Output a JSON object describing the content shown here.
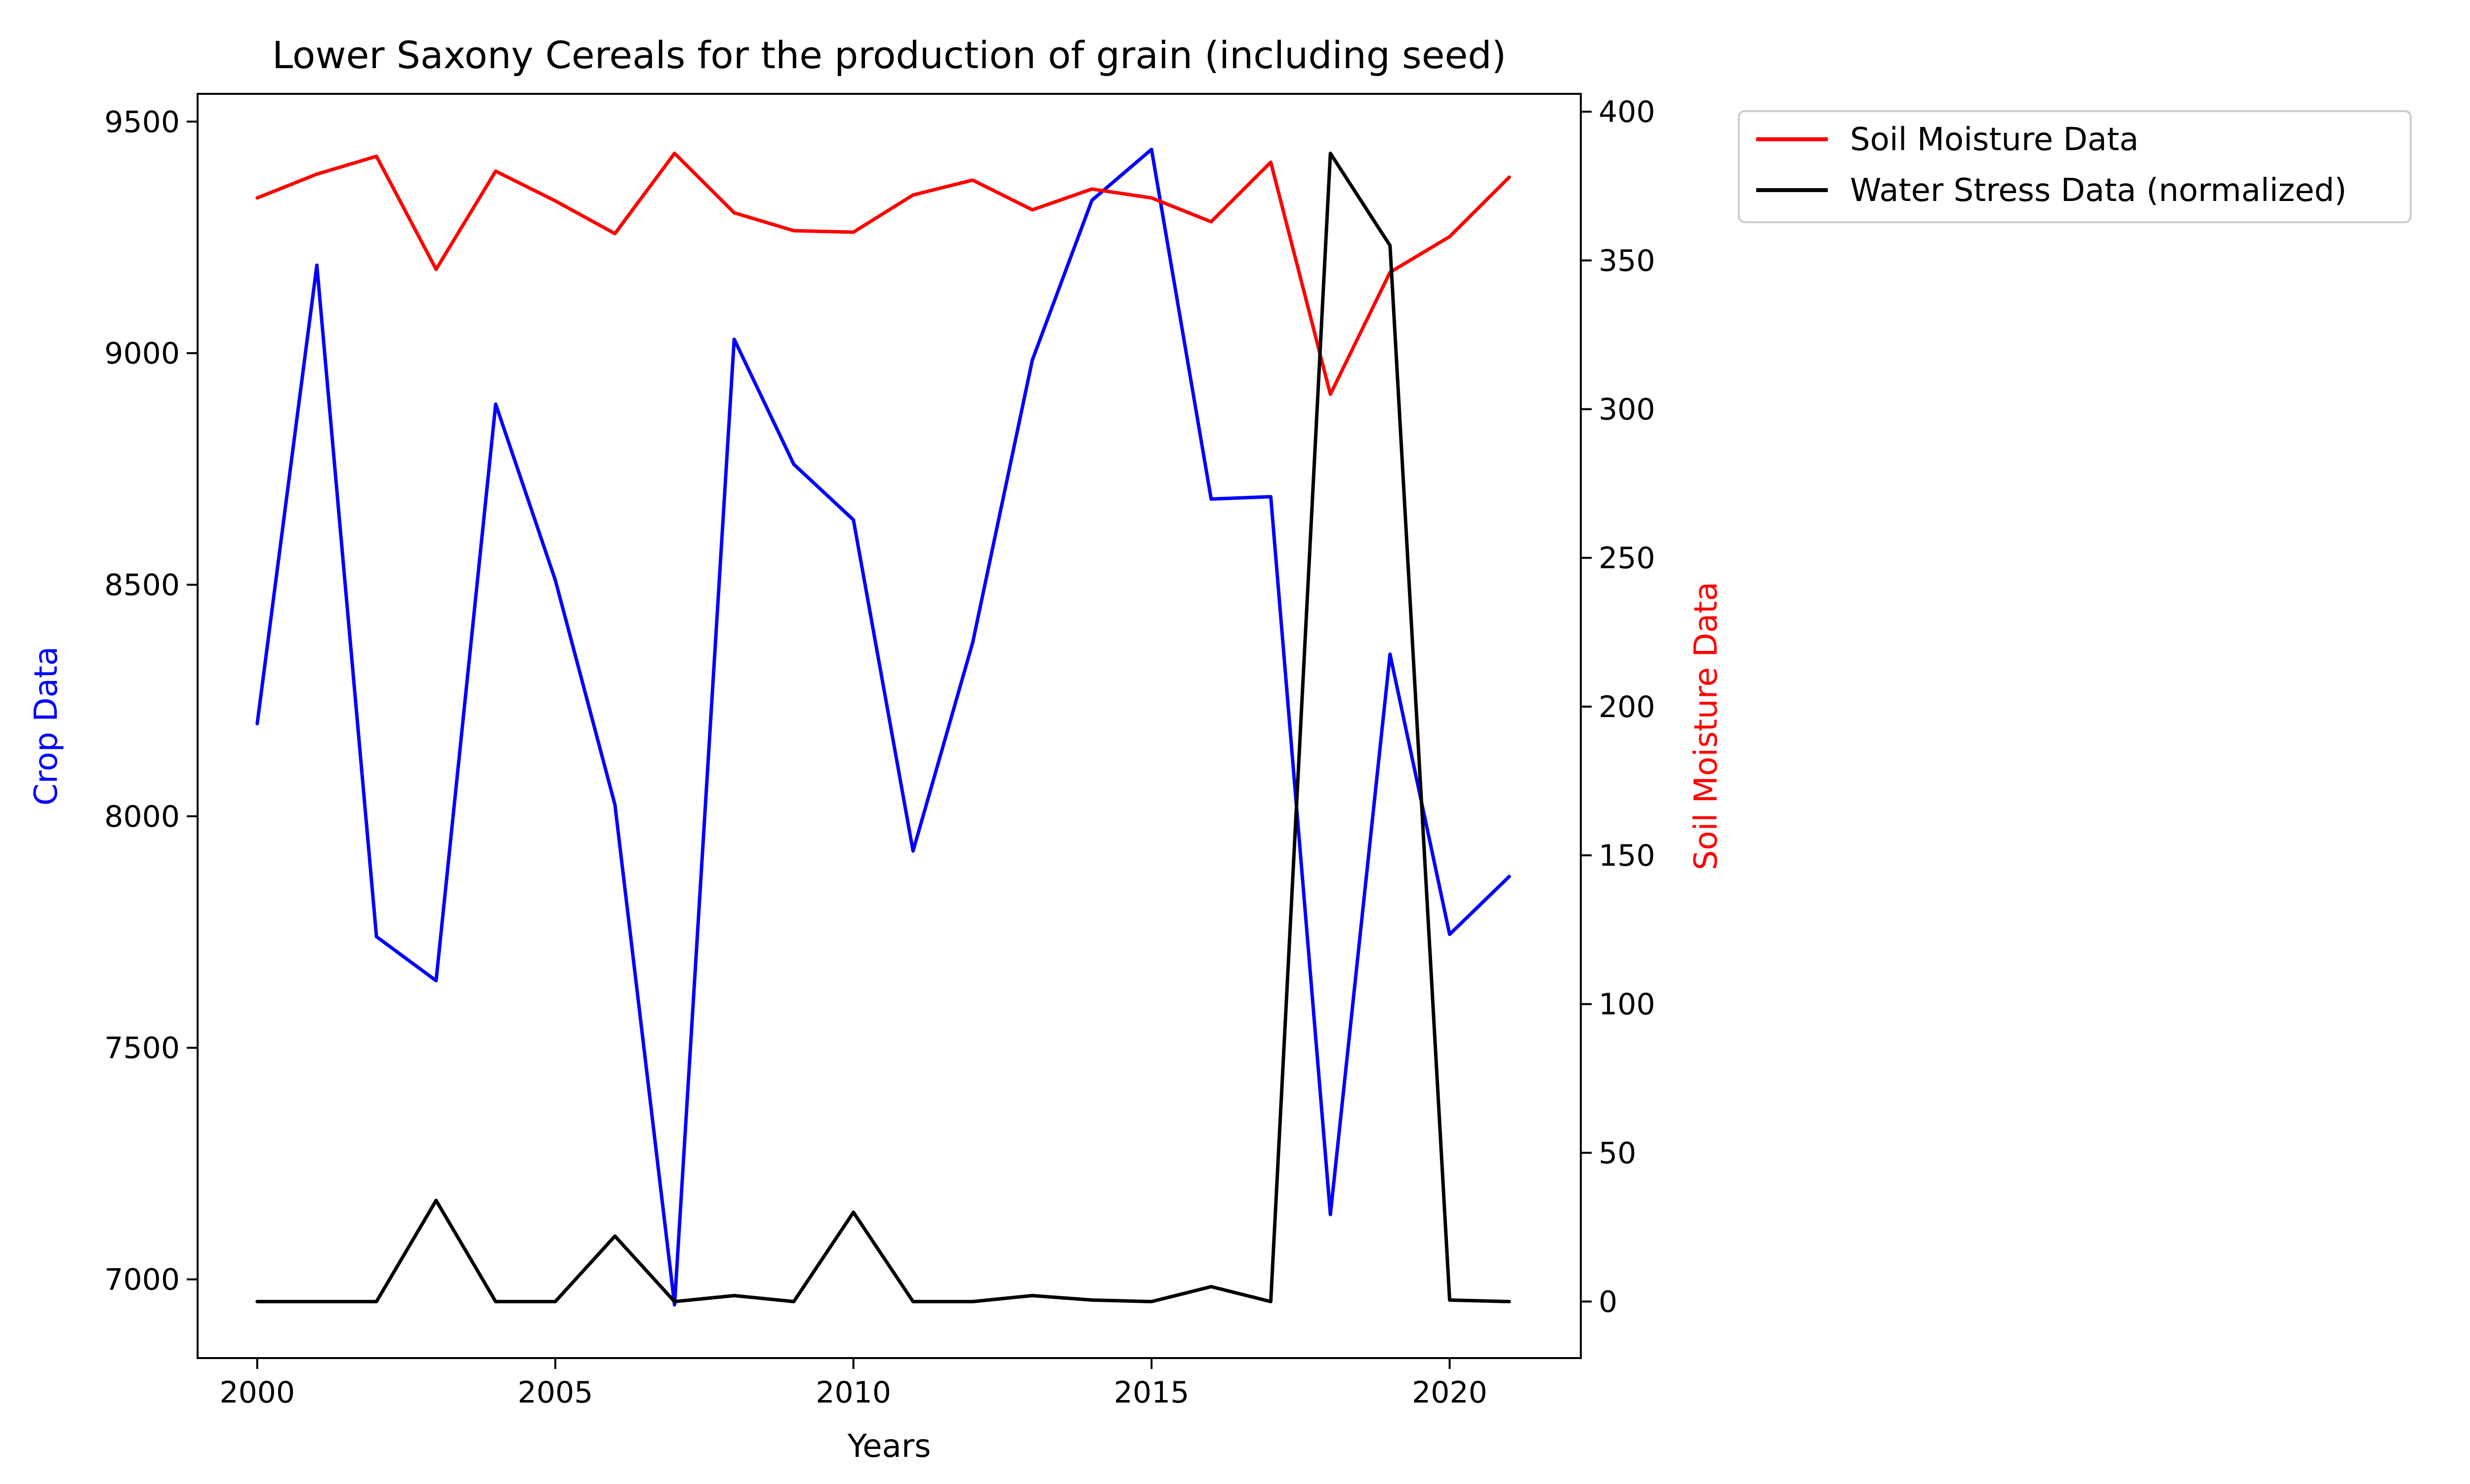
{
  "chart_data": {
    "type": "line",
    "title": "Lower Saxony Cereals for the production of grain (including seed)",
    "xlabel": "Years",
    "ylabel_left": "Crop Data",
    "ylabel_right": "Soil Moisture Data",
    "x": [
      2000,
      2001,
      2002,
      2003,
      2004,
      2005,
      2006,
      2007,
      2008,
      2009,
      2010,
      2011,
      2012,
      2013,
      2014,
      2015,
      2016,
      2017,
      2018,
      2019,
      2020,
      2021
    ],
    "xlim": [
      1999,
      2022.2
    ],
    "ylim_left": [
      6830,
      9560
    ],
    "ylim_right": [
      -19,
      406
    ],
    "xticks": [
      2000,
      2005,
      2010,
      2015,
      2020
    ],
    "yticks_left": [
      7000,
      7500,
      8000,
      8500,
      9000,
      9500
    ],
    "yticks_right": [
      0,
      50,
      100,
      150,
      200,
      250,
      300,
      350,
      400
    ],
    "grid": false,
    "legend_position": "outside-top-right",
    "colors": {
      "crop": "#0000ff",
      "soil": "#ff0000",
      "stress": "#000000",
      "left_label": "#0000ff",
      "right_label": "#ff0000"
    },
    "series": [
      {
        "key": "crop",
        "axis": "left",
        "values": [
          8200,
          9190,
          7740,
          7645,
          8890,
          8510,
          8025,
          6945,
          9030,
          8760,
          8640,
          7925,
          8375,
          8985,
          9330,
          9440,
          8685,
          8690,
          7140,
          8350,
          7745,
          7870
        ]
      },
      {
        "key": "soil",
        "axis": "right",
        "name": "Soil Moisture Data",
        "values": [
          371,
          379,
          385,
          347,
          380,
          370,
          359,
          386,
          366,
          360,
          359.5,
          372,
          377,
          367,
          374,
          371,
          363,
          383,
          305,
          346,
          358,
          378
        ]
      },
      {
        "key": "stress",
        "axis": "right",
        "name": "Water Stress Data (normalized)",
        "values": [
          0,
          0,
          0,
          34,
          0,
          0,
          22,
          0,
          2,
          0,
          30,
          0,
          0,
          2,
          0.5,
          0,
          5,
          0,
          386,
          355,
          0.5,
          0
        ]
      }
    ]
  }
}
